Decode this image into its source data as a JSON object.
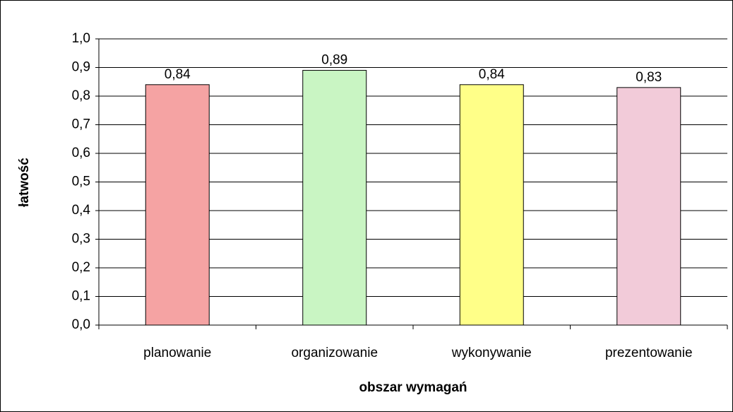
{
  "chart_data": {
    "type": "bar",
    "x_label": "obszar wymagań",
    "y_label": "łatwość",
    "categories": [
      "planowanie",
      "organizowanie",
      "wykonywanie",
      "prezentowanie"
    ],
    "values": [
      0.84,
      0.89,
      0.84,
      0.83
    ],
    "value_labels": [
      "0,84",
      "0,89",
      "0,84",
      "0,83"
    ],
    "colors": [
      "#f5a3a3",
      "#c9f5c3",
      "#ffff88",
      "#f2cbd9"
    ],
    "ylim": [
      0,
      1
    ],
    "yticks": [
      {
        "value": 0,
        "label": "0,0"
      },
      {
        "value": 0.1,
        "label": "0,1"
      },
      {
        "value": 0.2,
        "label": "0,2"
      },
      {
        "value": 0.3,
        "label": "0,3"
      },
      {
        "value": 0.4,
        "label": "0,4"
      },
      {
        "value": 0.5,
        "label": "0,5"
      },
      {
        "value": 0.6,
        "label": "0,6"
      },
      {
        "value": 0.7,
        "label": "0,7"
      },
      {
        "value": 0.8,
        "label": "0,8"
      },
      {
        "value": 0.9,
        "label": "0,9"
      },
      {
        "value": 1,
        "label": "1,0"
      }
    ],
    "grid": true
  }
}
